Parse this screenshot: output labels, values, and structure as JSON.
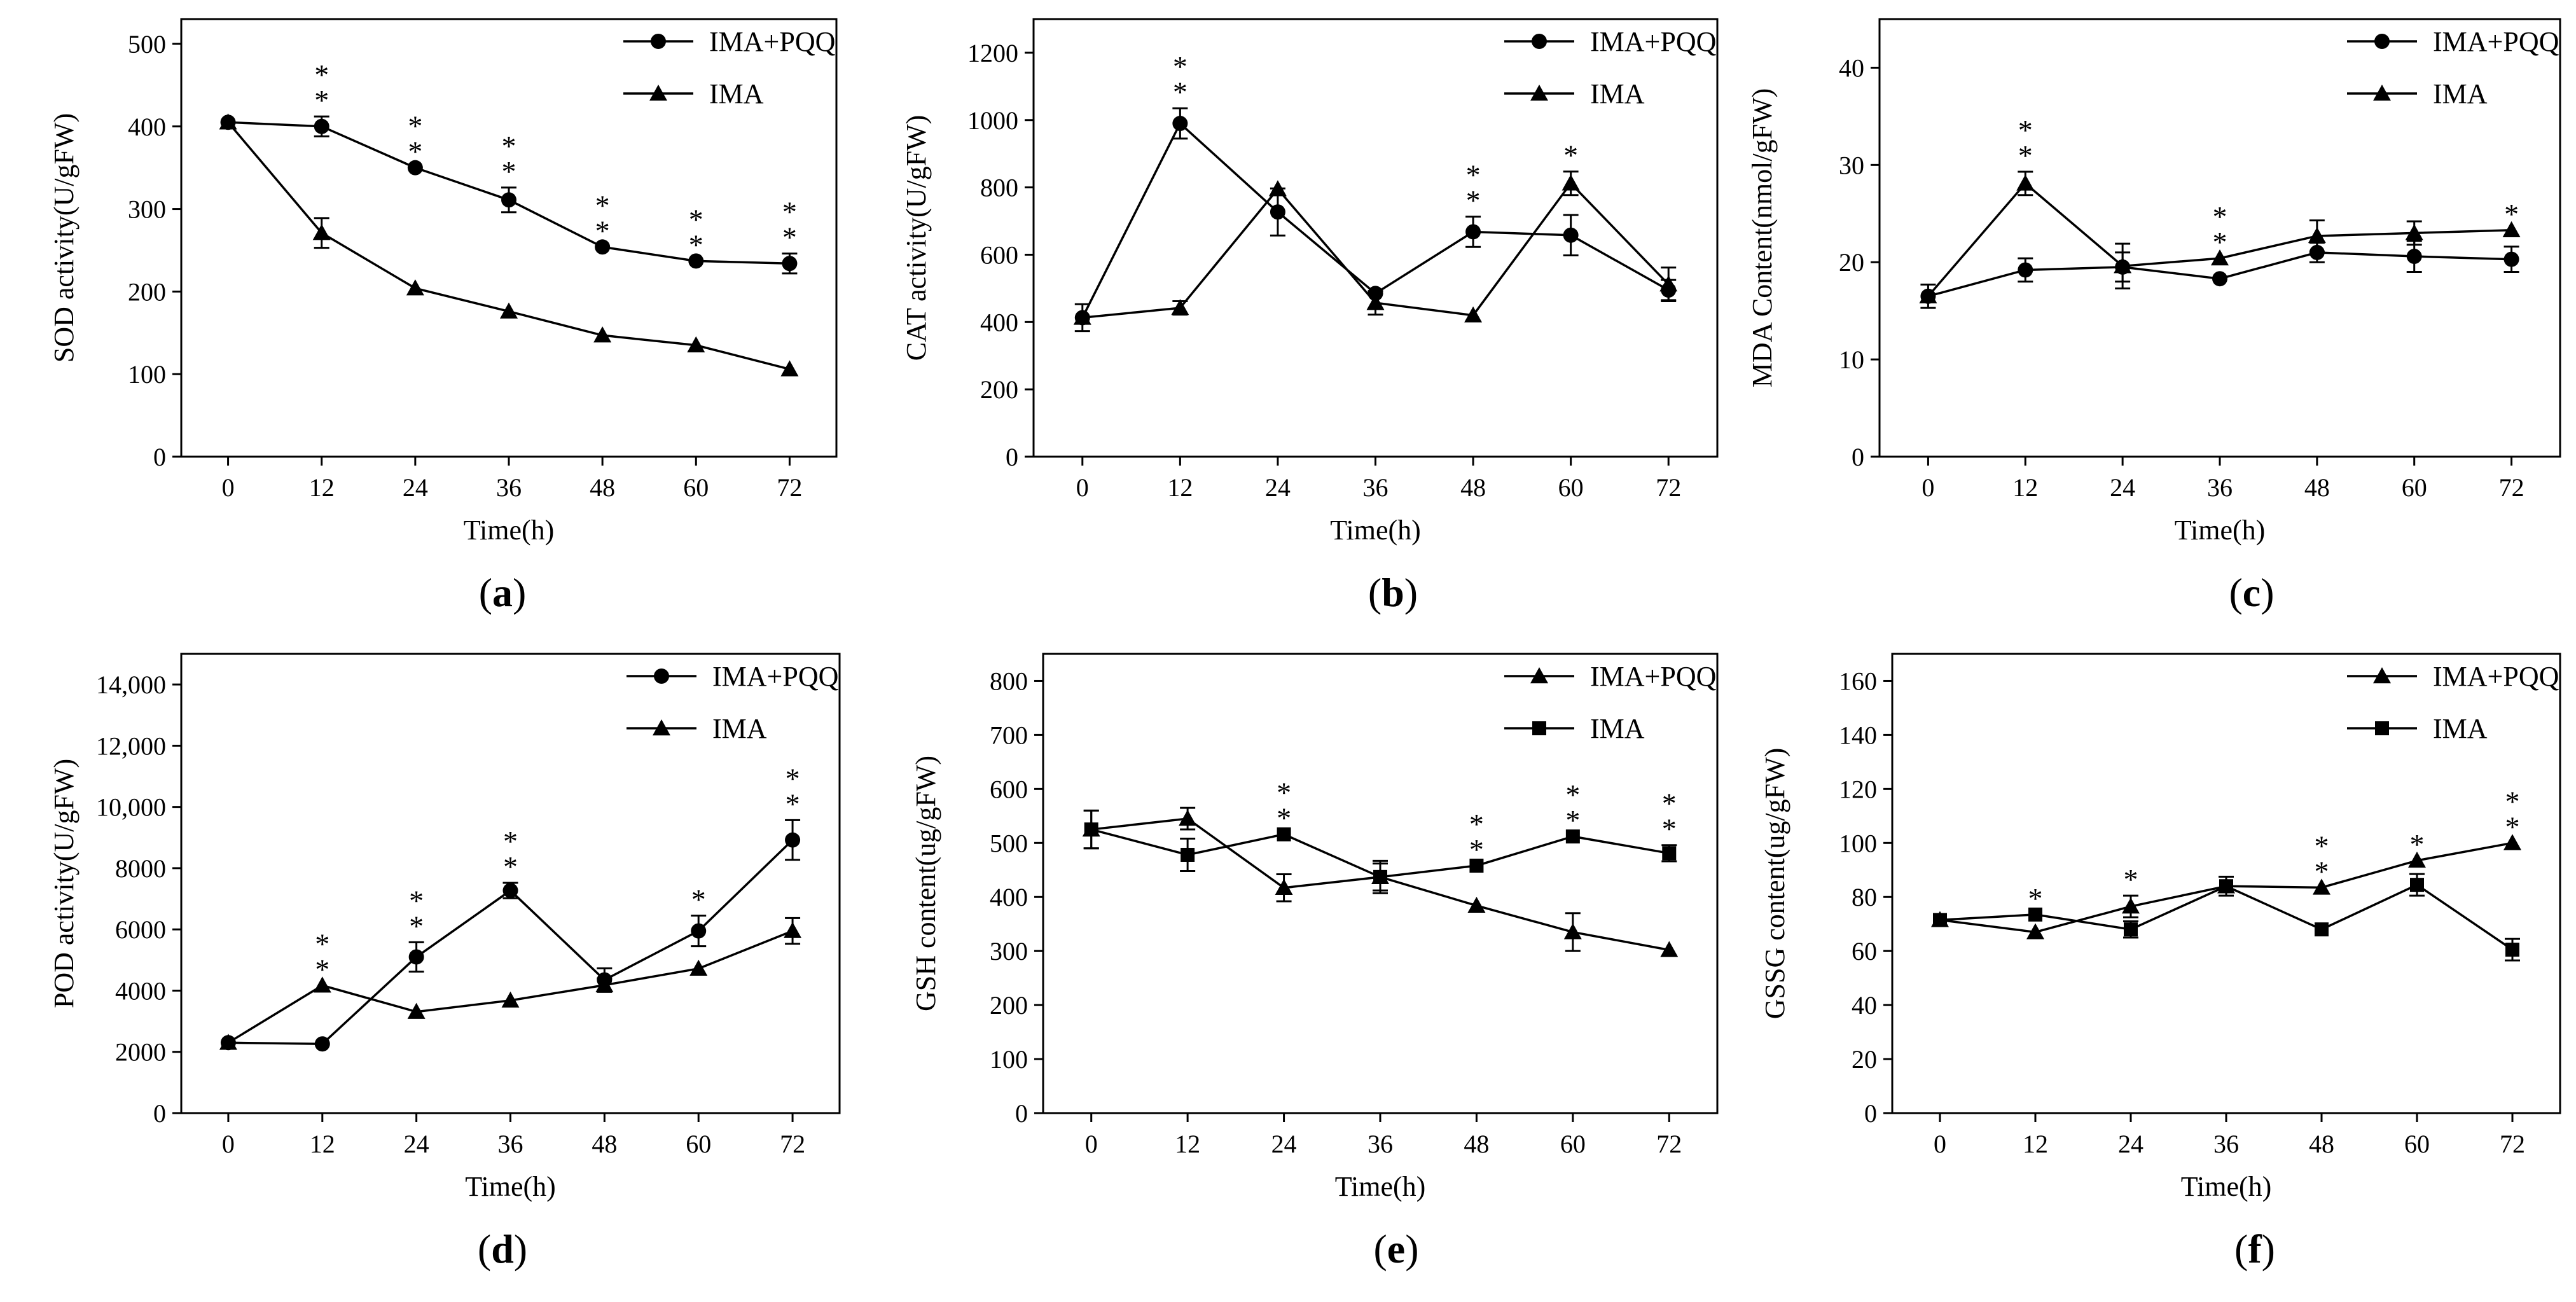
{
  "chart_data": [
    {
      "panel": "(a)",
      "panel_letter": "a",
      "type": "line",
      "xlabel": "Time(h)",
      "ylabel": "SOD activity(U/gFW)",
      "x": [
        0,
        12,
        24,
        36,
        48,
        60,
        72
      ],
      "xticks": [
        "0",
        "12",
        "24",
        "36",
        "48",
        "60",
        "72"
      ],
      "xlim": [
        -6,
        78
      ],
      "ylim": [
        0,
        530
      ],
      "yticks": [
        0,
        100,
        200,
        300,
        400,
        500
      ],
      "ytick_labels": [
        "0",
        "100",
        "200",
        "300",
        "400",
        "500"
      ],
      "series": [
        {
          "name": "IMA+PQQ",
          "marker": "circle",
          "values": [
            405,
            400,
            350,
            311,
            254,
            237,
            234
          ],
          "errors": [
            0,
            12,
            0,
            15,
            0,
            0,
            12
          ]
        },
        {
          "name": "IMA",
          "marker": "triangle",
          "values": [
            405,
            271,
            204,
            176,
            147,
            135,
            106
          ],
          "errors": [
            0,
            18,
            0,
            0,
            0,
            0,
            0
          ]
        }
      ],
      "significance": [
        {
          "x": 12,
          "label": "**"
        },
        {
          "x": 24,
          "label": "**"
        },
        {
          "x": 36,
          "label": "**"
        },
        {
          "x": 48,
          "label": "**"
        },
        {
          "x": 60,
          "label": "**"
        },
        {
          "x": 72,
          "label": "**"
        }
      ],
      "legend": "top-right"
    },
    {
      "panel": "(b)",
      "panel_letter": "b",
      "type": "line",
      "xlabel": "Time(h)",
      "ylabel": "CAT activity(U/gFW)",
      "x": [
        0,
        12,
        24,
        36,
        48,
        60,
        72
      ],
      "xticks": [
        "0",
        "12",
        "24",
        "36",
        "48",
        "60",
        "72"
      ],
      "xlim": [
        -6,
        78
      ],
      "ylim": [
        0,
        1300
      ],
      "yticks": [
        0,
        200,
        400,
        600,
        800,
        1000,
        1200
      ],
      "ytick_labels": [
        "0",
        "200",
        "400",
        "600",
        "800",
        "1000",
        "1200"
      ],
      "series": [
        {
          "name": "IMA+PQQ",
          "marker": "circle",
          "values": [
            413,
            990,
            727,
            485,
            668,
            658,
            495
          ],
          "errors": [
            40,
            45,
            70,
            0,
            45,
            60,
            30
          ]
        },
        {
          "name": "IMA",
          "marker": "triangle",
          "values": [
            413,
            442,
            795,
            457,
            420,
            812,
            512
          ],
          "errors": [
            0,
            20,
            0,
            35,
            0,
            35,
            50
          ]
        }
      ],
      "significance": [
        {
          "x": 12,
          "label": "**"
        },
        {
          "x": 48,
          "label": "**"
        },
        {
          "x": 60,
          "label": "*"
        }
      ],
      "legend": "top-right"
    },
    {
      "panel": "(c)",
      "panel_letter": "c",
      "type": "line",
      "xlabel": "Time(h)",
      "ylabel": "MDA Content(nmol/gFW)",
      "x": [
        0,
        12,
        24,
        36,
        48,
        60,
        72
      ],
      "xticks": [
        "0",
        "12",
        "24",
        "36",
        "48",
        "60",
        "72"
      ],
      "xlim": [
        -6,
        78
      ],
      "ylim": [
        0,
        45
      ],
      "yticks": [
        0,
        10,
        20,
        30,
        40
      ],
      "ytick_labels": [
        "0",
        "10",
        "20",
        "30",
        "40"
      ],
      "series": [
        {
          "name": "IMA+PQQ",
          "marker": "circle",
          "values": [
            16.5,
            19.2,
            19.5,
            18.3,
            21.0,
            20.6,
            20.3
          ],
          "errors": [
            1.2,
            1.2,
            1.5,
            0,
            1.0,
            1.6,
            1.3
          ]
        },
        {
          "name": "IMA",
          "marker": "triangle",
          "values": [
            16.5,
            28.1,
            19.6,
            20.4,
            22.7,
            23.0,
            23.3
          ],
          "errors": [
            0,
            1.2,
            2.3,
            0,
            1.6,
            1.2,
            0
          ]
        }
      ],
      "significance": [
        {
          "x": 12,
          "label": "**"
        },
        {
          "x": 36,
          "label": "**"
        },
        {
          "x": 72,
          "label": "*"
        }
      ],
      "legend": "top-right"
    },
    {
      "panel": "(d)",
      "panel_letter": "d",
      "type": "line",
      "xlabel": "Time(h)",
      "ylabel": "POD activity(U/gFW)",
      "x": [
        0,
        12,
        24,
        36,
        48,
        60,
        72
      ],
      "xticks": [
        "0",
        "12",
        "24",
        "36",
        "48",
        "60",
        "72"
      ],
      "xlim": [
        -6,
        78
      ],
      "ylim": [
        0,
        15000
      ],
      "yticks": [
        0,
        2000,
        4000,
        6000,
        8000,
        10000,
        12000,
        14000
      ],
      "ytick_labels": [
        "0",
        "2000",
        "4000",
        "6000",
        "8000",
        "10,000",
        "12,000",
        "14,000"
      ],
      "series": [
        {
          "name": "IMA+PQQ",
          "marker": "circle",
          "values": [
            2300,
            2260,
            5100,
            7270,
            4350,
            5950,
            8920
          ],
          "errors": [
            0,
            0,
            480,
            250,
            380,
            500,
            650
          ]
        },
        {
          "name": "IMA",
          "marker": "triangle",
          "values": [
            2300,
            4170,
            3310,
            3680,
            4180,
            4720,
            5950
          ],
          "errors": [
            0,
            0,
            0,
            0,
            220,
            0,
            420
          ]
        }
      ],
      "significance": [
        {
          "x": 12,
          "label": "**"
        },
        {
          "x": 24,
          "label": "**"
        },
        {
          "x": 36,
          "label": "**"
        },
        {
          "x": 60,
          "label": "*"
        },
        {
          "x": 72,
          "label": "**"
        }
      ],
      "legend": "top-right"
    },
    {
      "panel": "(e)",
      "panel_letter": "e",
      "type": "line",
      "xlabel": "Time(h)",
      "ylabel": "GSH content(ug/gFW)",
      "x": [
        0,
        12,
        24,
        36,
        48,
        60,
        72
      ],
      "xticks": [
        "0",
        "12",
        "24",
        "36",
        "48",
        "60",
        "72"
      ],
      "xlim": [
        -6,
        78
      ],
      "ylim": [
        0,
        850
      ],
      "yticks": [
        0,
        100,
        200,
        300,
        400,
        500,
        600,
        700,
        800
      ],
      "ytick_labels": [
        "0",
        "100",
        "200",
        "300",
        "400",
        "500",
        "600",
        "700",
        "800"
      ],
      "series": [
        {
          "name": "IMA+PQQ",
          "marker": "triangle",
          "values": [
            525,
            545,
            417,
            437,
            384,
            335,
            302
          ],
          "errors": [
            35,
            20,
            25,
            30,
            0,
            35,
            0
          ]
        },
        {
          "name": "IMA",
          "marker": "square",
          "values": [
            525,
            478,
            516,
            437,
            458,
            512,
            481
          ],
          "errors": [
            35,
            30,
            0,
            25,
            0,
            0,
            15
          ]
        }
      ],
      "significance": [
        {
          "x": 24,
          "label": "**"
        },
        {
          "x": 48,
          "label": "**"
        },
        {
          "x": 60,
          "label": "**"
        },
        {
          "x": 72,
          "label": "**"
        }
      ],
      "legend": "top-right"
    },
    {
      "panel": "(f)",
      "panel_letter": "f",
      "type": "line",
      "xlabel": "Time(h)",
      "ylabel": "GSSG content(ug/gFW)",
      "x": [
        0,
        12,
        24,
        36,
        48,
        60,
        72
      ],
      "xticks": [
        "0",
        "12",
        "24",
        "36",
        "48",
        "60",
        "72"
      ],
      "xlim": [
        -6,
        78
      ],
      "ylim": [
        0,
        170
      ],
      "yticks": [
        0,
        20,
        40,
        60,
        80,
        100,
        120,
        140,
        160
      ],
      "ytick_labels": [
        "0",
        "20",
        "40",
        "60",
        "80",
        "100",
        "120",
        "140",
        "160"
      ],
      "series": [
        {
          "name": "IMA+PQQ",
          "marker": "triangle",
          "values": [
            71.5,
            67,
            76.5,
            84,
            83.5,
            93.5,
            100
          ],
          "errors": [
            0,
            0,
            4,
            0,
            0,
            0,
            0
          ]
        },
        {
          "name": "IMA",
          "marker": "square",
          "values": [
            71.5,
            73.5,
            68,
            84,
            68,
            84.5,
            60.5
          ],
          "errors": [
            0,
            0,
            3,
            3.5,
            0,
            4,
            4
          ]
        }
      ],
      "significance": [
        {
          "x": 12,
          "label": "*"
        },
        {
          "x": 24,
          "label": "*"
        },
        {
          "x": 48,
          "label": "**"
        },
        {
          "x": 60,
          "label": "*"
        },
        {
          "x": 72,
          "label": "**"
        }
      ],
      "legend": "top-right"
    }
  ]
}
